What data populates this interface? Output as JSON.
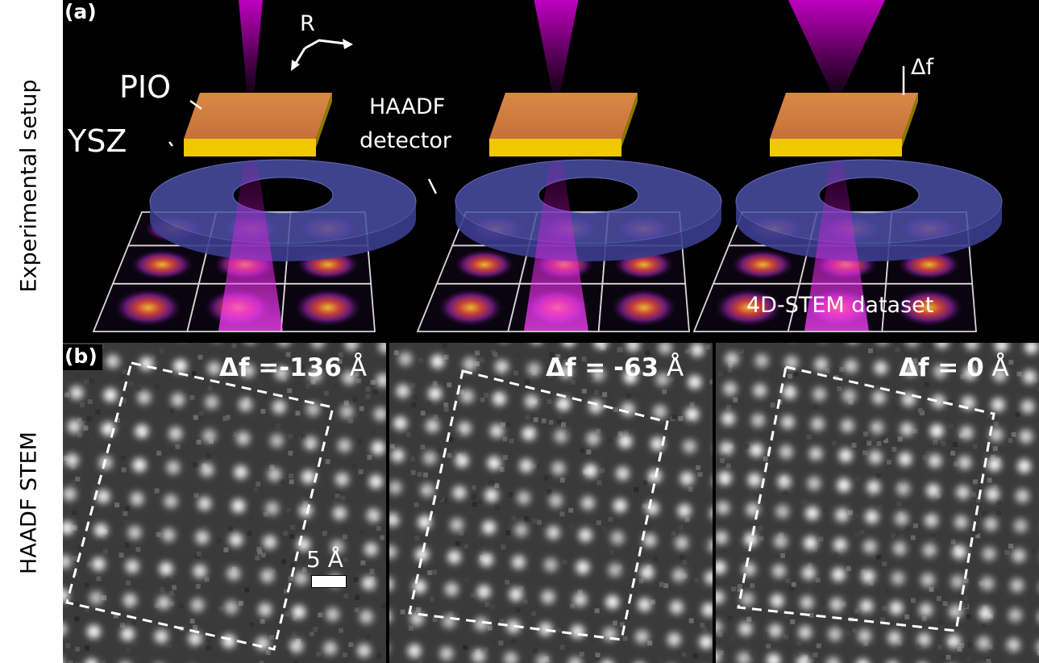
{
  "side_labels": {
    "top": "Experimental setup",
    "bottom": "HAADF STEM"
  },
  "panel_a": {
    "tag": "(a)",
    "labels": {
      "pio": "PIO",
      "ysz": "YSZ",
      "r": "R",
      "haadf_line1": "HAADF",
      "haadf_line2": "detector",
      "delta_f": "Δf",
      "dataset": "4D-STEM dataset"
    },
    "colors": {
      "beam": "#d400d4",
      "pio": "#d9823a",
      "ysz": "#f0c800",
      "detector": "#4b4fa6"
    }
  },
  "panel_b": {
    "tag": "(b)",
    "defocus_values": [
      {
        "prefix": "Δf =",
        "value": "-136",
        "unit": "Å"
      },
      {
        "prefix": "Δf =",
        "value": "-63",
        "unit": "Å"
      },
      {
        "prefix": "Δf =",
        "value": "0",
        "unit": "Å"
      }
    ],
    "scale_bar": "5 Å"
  }
}
